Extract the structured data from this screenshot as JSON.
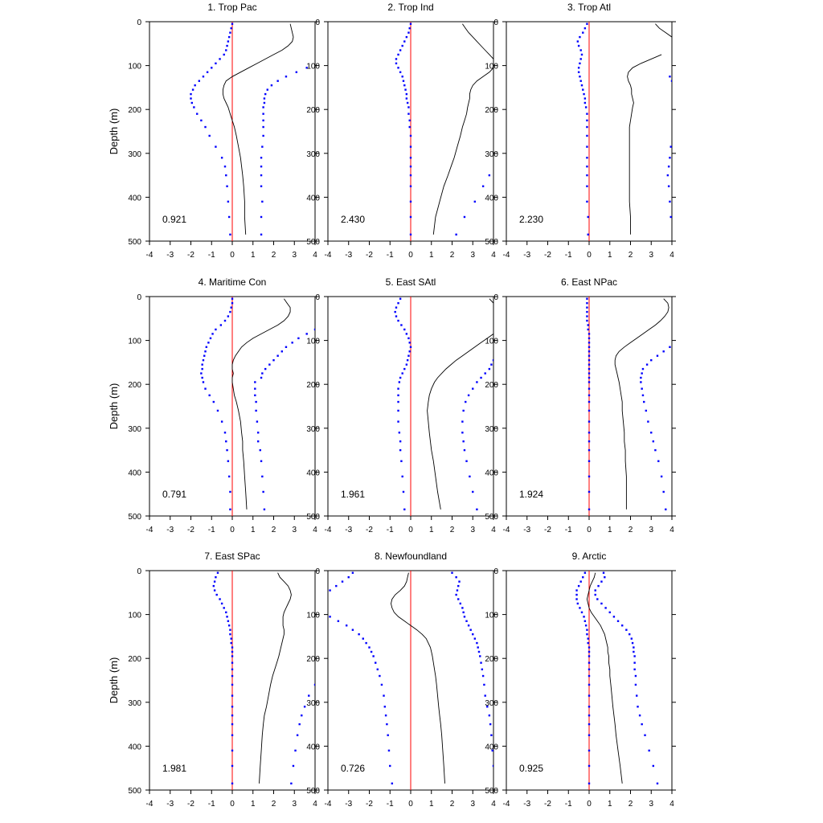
{
  "chart_data": {
    "type": "line",
    "xlim": [
      -4,
      4
    ],
    "ylim": [
      0,
      500
    ],
    "y_inverted": true,
    "ylabel": "Depth (m)",
    "xticks": [
      "-4",
      "-3",
      "-2",
      "-1",
      "0",
      "1",
      "2",
      "3",
      "4"
    ],
    "yticks": [
      "0",
      "100",
      "200",
      "300",
      "400",
      "500"
    ],
    "reference_line_x": 0,
    "colors": {
      "mean": "#000000",
      "spread": "#0000ff",
      "reference": "#ff0000"
    },
    "depths": [
      5,
      15,
      25,
      35,
      45,
      55,
      65,
      75,
      85,
      95,
      105,
      115,
      125,
      135,
      145,
      155,
      165,
      175,
      185,
      195,
      210,
      225,
      240,
      260,
      285,
      310,
      330,
      350,
      375,
      410,
      445,
      485
    ],
    "panels": [
      {
        "title": "1. Trop Pac",
        "stat": "0.921",
        "mean": [
          2.8,
          2.85,
          2.9,
          2.95,
          2.9,
          2.7,
          2.4,
          2.0,
          1.6,
          1.2,
          0.8,
          0.4,
          0.0,
          -0.3,
          -0.4,
          -0.45,
          -0.45,
          -0.4,
          -0.3,
          -0.2,
          -0.1,
          0.0,
          0.1,
          0.2,
          0.3,
          0.4,
          0.45,
          0.5,
          0.55,
          0.6,
          0.6,
          0.65
        ],
        "lower": [
          0.0,
          -0.05,
          -0.1,
          -0.15,
          -0.2,
          -0.25,
          -0.3,
          -0.4,
          -0.6,
          -0.8,
          -1.0,
          -1.2,
          -1.4,
          -1.6,
          -1.8,
          -1.9,
          -2.0,
          -2.0,
          -1.95,
          -1.85,
          -1.7,
          -1.5,
          -1.3,
          -1.1,
          -0.8,
          -0.5,
          -0.35,
          -0.3,
          -0.25,
          -0.2,
          -0.15,
          -0.1
        ],
        "upper": [
          null,
          null,
          null,
          null,
          null,
          null,
          null,
          null,
          null,
          null,
          3.6,
          3.1,
          2.6,
          2.2,
          1.9,
          1.7,
          1.6,
          1.55,
          1.55,
          1.5,
          1.5,
          1.5,
          1.5,
          1.5,
          1.45,
          1.4,
          1.4,
          1.4,
          1.4,
          1.45,
          1.4,
          1.4
        ]
      },
      {
        "title": "2. Trop Ind",
        "stat": "2.430",
        "mean": [
          2.5,
          2.65,
          2.8,
          3.0,
          3.2,
          3.4,
          3.6,
          3.8,
          4.0,
          4.1,
          4.0,
          3.8,
          3.5,
          3.2,
          3.0,
          2.9,
          2.85,
          2.85,
          2.8,
          2.75,
          2.7,
          2.6,
          2.5,
          2.4,
          2.25,
          2.1,
          1.95,
          1.8,
          1.6,
          1.4,
          1.2,
          1.1
        ],
        "lower": [
          0.0,
          -0.05,
          -0.1,
          -0.2,
          -0.3,
          -0.4,
          -0.5,
          -0.6,
          -0.7,
          -0.7,
          -0.6,
          -0.5,
          -0.4,
          -0.35,
          -0.3,
          -0.25,
          -0.2,
          -0.2,
          -0.15,
          -0.1,
          -0.1,
          -0.05,
          -0.05,
          0.0,
          0.0,
          0.0,
          0.0,
          0.0,
          0.0,
          0.0,
          0.0,
          0.0
        ],
        "upper": [
          null,
          null,
          null,
          null,
          null,
          null,
          null,
          null,
          null,
          null,
          null,
          null,
          null,
          null,
          null,
          null,
          null,
          null,
          null,
          null,
          null,
          null,
          null,
          null,
          null,
          null,
          null,
          3.8,
          3.5,
          3.1,
          2.6,
          2.2
        ]
      },
      {
        "title": "3. Trop Atl",
        "stat": "2.230",
        "mean": [
          3.2,
          3.4,
          3.7,
          4.0,
          null,
          null,
          null,
          3.5,
          3.0,
          2.5,
          2.1,
          1.9,
          1.85,
          1.9,
          2.0,
          2.05,
          2.05,
          2.1,
          2.15,
          2.1,
          2.05,
          2.0,
          1.95,
          1.95,
          1.95,
          1.95,
          1.95,
          1.95,
          1.95,
          1.95,
          2.0,
          2.0
        ],
        "lower": [
          -0.1,
          -0.2,
          -0.3,
          -0.45,
          -0.55,
          -0.5,
          -0.4,
          -0.35,
          -0.4,
          -0.45,
          -0.5,
          -0.5,
          -0.45,
          -0.4,
          -0.35,
          -0.3,
          -0.25,
          -0.2,
          -0.2,
          -0.15,
          -0.1,
          -0.1,
          -0.1,
          -0.1,
          -0.1,
          -0.1,
          -0.1,
          -0.1,
          -0.1,
          -0.1,
          -0.05,
          -0.05
        ],
        "upper": [
          null,
          null,
          null,
          null,
          null,
          null,
          null,
          null,
          null,
          null,
          null,
          null,
          3.9,
          4.0,
          null,
          null,
          null,
          null,
          null,
          null,
          null,
          null,
          null,
          null,
          3.95,
          3.9,
          3.85,
          3.8,
          3.85,
          3.9,
          3.95,
          null
        ]
      },
      {
        "title": "4. Maritime Con",
        "stat": "0.791",
        "mean": [
          2.5,
          2.65,
          2.8,
          2.8,
          2.7,
          2.5,
          2.2,
          1.8,
          1.4,
          1.0,
          0.7,
          0.45,
          0.3,
          0.15,
          0.05,
          0.0,
          0.0,
          0.05,
          0.0,
          0.0,
          0.05,
          0.1,
          0.2,
          0.3,
          0.4,
          0.45,
          0.5,
          0.5,
          0.55,
          0.6,
          0.65,
          0.7
        ],
        "lower": [
          0.0,
          0.0,
          -0.05,
          -0.1,
          -0.2,
          -0.35,
          -0.55,
          -0.8,
          -0.95,
          -1.05,
          -1.15,
          -1.25,
          -1.3,
          -1.35,
          -1.4,
          -1.45,
          -1.45,
          -1.5,
          -1.45,
          -1.4,
          -1.3,
          -1.1,
          -0.9,
          -0.7,
          -0.5,
          -0.35,
          -0.3,
          -0.25,
          -0.2,
          -0.15,
          -0.1,
          -0.1
        ],
        "upper": [
          null,
          null,
          null,
          null,
          null,
          null,
          null,
          4.0,
          3.6,
          3.2,
          2.9,
          2.6,
          2.4,
          2.2,
          2.0,
          1.8,
          1.6,
          1.45,
          1.4,
          1.1,
          1.1,
          1.1,
          1.15,
          1.15,
          1.2,
          1.25,
          1.25,
          1.35,
          1.4,
          1.45,
          1.5,
          1.55
        ]
      },
      {
        "title": "5. East SAtl",
        "stat": "1.961",
        "mean": [
          3.8,
          4.0,
          null,
          null,
          null,
          null,
          null,
          null,
          4.0,
          3.7,
          3.4,
          3.1,
          2.8,
          2.5,
          2.2,
          1.95,
          1.7,
          1.5,
          1.3,
          1.15,
          1.0,
          0.9,
          0.85,
          0.8,
          0.85,
          0.9,
          0.95,
          1.0,
          1.1,
          1.2,
          1.3,
          1.45
        ],
        "lower": [
          -0.5,
          -0.6,
          -0.7,
          -0.75,
          -0.7,
          -0.6,
          -0.45,
          -0.3,
          -0.2,
          -0.1,
          -0.05,
          0.0,
          -0.05,
          -0.1,
          -0.15,
          -0.2,
          -0.3,
          -0.4,
          -0.5,
          -0.55,
          -0.6,
          -0.6,
          -0.6,
          -0.6,
          -0.6,
          -0.55,
          -0.5,
          -0.5,
          -0.45,
          -0.4,
          -0.35,
          -0.3
        ],
        "upper": [
          null,
          null,
          null,
          null,
          null,
          null,
          null,
          null,
          null,
          null,
          null,
          null,
          null,
          null,
          4.0,
          3.9,
          3.8,
          3.6,
          3.4,
          3.2,
          3.0,
          2.8,
          2.65,
          2.55,
          2.5,
          2.5,
          2.55,
          2.6,
          2.7,
          2.85,
          3.0,
          3.2
        ]
      },
      {
        "title": "6. East NPac",
        "stat": "1.924",
        "mean": [
          3.6,
          3.8,
          3.85,
          3.8,
          3.65,
          3.45,
          3.2,
          2.9,
          2.6,
          2.3,
          2.0,
          1.7,
          1.45,
          1.3,
          1.25,
          1.25,
          1.3,
          1.35,
          1.4,
          1.45,
          1.5,
          1.55,
          1.6,
          1.6,
          1.65,
          1.7,
          1.7,
          1.75,
          1.75,
          1.8,
          1.8,
          1.8
        ],
        "lower": [
          -0.1,
          -0.1,
          -0.1,
          -0.1,
          -0.1,
          -0.1,
          -0.05,
          -0.05,
          0.0,
          0.0,
          0.0,
          0.0,
          0.0,
          0.0,
          0.0,
          0.0,
          0.0,
          0.0,
          0.0,
          0.0,
          0.0,
          0.0,
          0.0,
          0.0,
          0.0,
          0.0,
          0.0,
          0.0,
          0.0,
          0.0,
          0.0,
          0.0
        ],
        "upper": [
          null,
          null,
          null,
          null,
          null,
          null,
          null,
          null,
          null,
          null,
          null,
          3.9,
          3.6,
          3.3,
          3.0,
          2.8,
          2.6,
          2.55,
          2.5,
          2.5,
          2.55,
          2.6,
          2.65,
          2.75,
          2.85,
          3.0,
          3.1,
          3.2,
          3.35,
          3.5,
          3.6,
          3.7
        ]
      },
      {
        "title": "7. East SPac",
        "stat": "1.981",
        "mean": [
          2.2,
          2.3,
          2.5,
          2.7,
          2.8,
          2.85,
          2.8,
          2.7,
          2.6,
          2.5,
          2.45,
          2.45,
          2.45,
          2.5,
          2.5,
          2.45,
          2.4,
          2.35,
          2.3,
          2.25,
          2.15,
          2.05,
          1.95,
          1.85,
          1.75,
          1.65,
          1.55,
          1.5,
          1.45,
          1.4,
          1.35,
          1.3
        ],
        "lower": [
          -0.7,
          -0.8,
          -0.85,
          -0.9,
          -0.85,
          -0.75,
          -0.6,
          -0.5,
          -0.4,
          -0.3,
          -0.25,
          -0.2,
          -0.15,
          -0.1,
          -0.1,
          -0.05,
          -0.05,
          0.0,
          0.0,
          0.0,
          0.0,
          0.0,
          0.0,
          0.0,
          0.0,
          0.0,
          0.0,
          0.0,
          0.0,
          0.0,
          0.0,
          0.0
        ],
        "upper": [
          null,
          null,
          null,
          null,
          null,
          null,
          null,
          null,
          null,
          null,
          null,
          null,
          null,
          null,
          null,
          null,
          null,
          null,
          null,
          null,
          null,
          null,
          null,
          4.0,
          3.7,
          3.5,
          3.35,
          3.25,
          3.15,
          3.05,
          2.95,
          2.85
        ]
      },
      {
        "title": "8. Newfoundland",
        "stat": "0.726",
        "mean": [
          -0.1,
          -0.15,
          -0.2,
          -0.3,
          -0.5,
          -0.75,
          -0.9,
          -0.95,
          -0.9,
          -0.8,
          -0.6,
          -0.3,
          0.0,
          0.3,
          0.55,
          0.75,
          0.85,
          0.95,
          1.0,
          1.05,
          1.1,
          1.15,
          1.2,
          1.25,
          1.3,
          1.35,
          1.4,
          1.45,
          1.5,
          1.55,
          1.6,
          1.65
        ],
        "lower": [
          -2.8,
          -3.0,
          -3.3,
          -3.6,
          -3.9,
          null,
          null,
          null,
          null,
          null,
          -3.9,
          -3.5,
          -3.1,
          -2.8,
          -2.5,
          -2.3,
          -2.15,
          -2.0,
          -1.9,
          -1.8,
          -1.7,
          -1.6,
          -1.5,
          -1.4,
          -1.3,
          -1.25,
          -1.2,
          -1.15,
          -1.1,
          -1.05,
          -1.0,
          -0.9
        ],
        "upper": [
          2.0,
          2.2,
          2.35,
          2.3,
          2.25,
          2.2,
          2.3,
          2.4,
          2.5,
          2.55,
          2.6,
          2.7,
          2.8,
          2.9,
          3.0,
          3.1,
          3.2,
          3.25,
          3.3,
          3.35,
          3.4,
          3.45,
          3.5,
          3.55,
          3.6,
          3.7,
          3.8,
          3.85,
          3.9,
          3.95,
          4.0,
          null
        ]
      },
      {
        "title": "9. Arctic",
        "stat": "0.925",
        "mean": [
          0.3,
          0.25,
          0.15,
          0.05,
          0.0,
          -0.05,
          -0.1,
          -0.05,
          0.0,
          0.1,
          0.25,
          0.4,
          0.55,
          0.65,
          0.75,
          0.8,
          0.85,
          0.9,
          0.9,
          0.95,
          0.95,
          1.0,
          1.0,
          1.05,
          1.1,
          1.15,
          1.2,
          1.25,
          1.3,
          1.4,
          1.5,
          1.6
        ],
        "lower": [
          -0.2,
          -0.3,
          -0.4,
          -0.5,
          -0.6,
          -0.6,
          -0.6,
          -0.55,
          -0.45,
          -0.35,
          -0.25,
          -0.2,
          -0.15,
          -0.1,
          -0.1,
          -0.05,
          -0.05,
          0.0,
          0.0,
          0.0,
          0.0,
          0.0,
          0.0,
          0.0,
          0.0,
          0.0,
          0.0,
          0.0,
          0.0,
          0.0,
          0.0,
          0.0
        ],
        "upper": [
          0.7,
          0.75,
          0.6,
          0.45,
          0.3,
          0.3,
          0.4,
          0.6,
          0.8,
          1.0,
          1.2,
          1.4,
          1.6,
          1.8,
          1.95,
          2.05,
          2.1,
          2.15,
          2.15,
          2.2,
          2.2,
          2.2,
          2.25,
          2.25,
          2.3,
          2.35,
          2.45,
          2.55,
          2.7,
          2.9,
          3.1,
          3.3
        ]
      }
    ]
  }
}
